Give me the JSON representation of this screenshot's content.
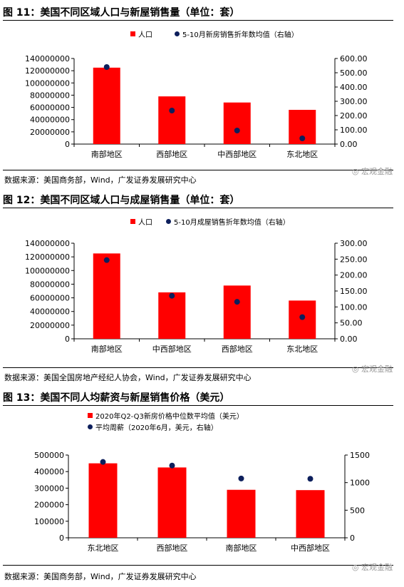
{
  "figures": [
    {
      "title": "图 11：美国不同区域人口与新屋销售量（单位：套）",
      "source": "数据来源：美国商务部，Wind，广发证券发展研究中心",
      "watermark": "宏观金融"
    },
    {
      "title": "图 12：美国不同区域人口与成屋销售量（单位：套）",
      "source": "数据来源：美国全国房地产经纪人协会，Wind，广发证券发展研究中心",
      "watermark": "宏观金融"
    },
    {
      "title": "图 13：美国不同人均薪资与新屋销售价格（美元）",
      "source": "数据来源：美国商务部，Wind，广发证券发展研究中心",
      "watermark": "宏观金融"
    }
  ],
  "chart_data": [
    {
      "type": "bar",
      "title": "图 11：美国不同区域人口与新屋销售量（单位：套）",
      "categories": [
        "南部地区",
        "西部地区",
        "中西部地区",
        "东北地区"
      ],
      "series": [
        {
          "name": "人口",
          "type": "bar",
          "axis": "left",
          "color": "#ff0000",
          "values": [
            125000000,
            78000000,
            68000000,
            56000000
          ]
        },
        {
          "name": "5-10月新房销售折年数均值（右轴）",
          "type": "scatter",
          "axis": "right",
          "color": "#0d1f5c",
          "values": [
            540,
            235,
            95,
            40
          ]
        }
      ],
      "y_left": {
        "min": 0,
        "max": 140000000,
        "ticks": [
          "0",
          "20000000",
          "40000000",
          "60000000",
          "80000000",
          "100000000",
          "120000000",
          "140000000"
        ]
      },
      "y_right": {
        "min": 0,
        "max": 600,
        "ticks": [
          "0.00",
          "100.00",
          "200.00",
          "300.00",
          "400.00",
          "500.00",
          "600.00"
        ]
      },
      "legend": "top-center",
      "grid": false
    },
    {
      "type": "bar",
      "title": "图 12：美国不同区域人口与成屋销售量（单位：套）",
      "categories": [
        "南部地区",
        "中西部地区",
        "西部地区",
        "东北地区"
      ],
      "series": [
        {
          "name": "人口",
          "type": "bar",
          "axis": "left",
          "color": "#ff0000",
          "values": [
            125000000,
            68000000,
            78000000,
            56000000
          ]
        },
        {
          "name": "5-10月成屋销售折年数均值（右轴）",
          "type": "scatter",
          "axis": "right",
          "color": "#0d1f5c",
          "values": [
            247,
            135,
            116,
            68
          ]
        }
      ],
      "y_left": {
        "min": 0,
        "max": 140000000,
        "ticks": [
          "0",
          "20000000",
          "40000000",
          "60000000",
          "80000000",
          "100000000",
          "120000000",
          "140000000"
        ]
      },
      "y_right": {
        "min": 0,
        "max": 300,
        "ticks": [
          "0.00",
          "50.00",
          "100.00",
          "150.00",
          "200.00",
          "250.00",
          "300.00"
        ]
      },
      "legend": "top-center",
      "grid": false
    },
    {
      "type": "bar",
      "title": "图 13：美国不同人均薪资与新屋销售价格（美元）",
      "categories": [
        "东北地区",
        "西部地区",
        "南部地区",
        "中西部地区"
      ],
      "series": [
        {
          "name": "2020年Q2-Q3新房价格中位数平均值（美元）",
          "type": "bar",
          "axis": "left",
          "color": "#ff0000",
          "values": [
            450000,
            425000,
            290000,
            288000
          ]
        },
        {
          "name": "平均周薪（2020年6月，美元，右轴）",
          "type": "scatter",
          "axis": "right",
          "color": "#0d1f5c",
          "values": [
            1375,
            1310,
            1075,
            1070
          ]
        }
      ],
      "y_left": {
        "min": 0,
        "max": 500000,
        "ticks": [
          "0",
          "100000",
          "200000",
          "300000",
          "400000",
          "500000"
        ]
      },
      "y_right": {
        "min": 0,
        "max": 1500,
        "ticks": [
          "0",
          "500",
          "1000",
          "1500"
        ]
      },
      "legend": "top-left",
      "grid": false
    }
  ]
}
